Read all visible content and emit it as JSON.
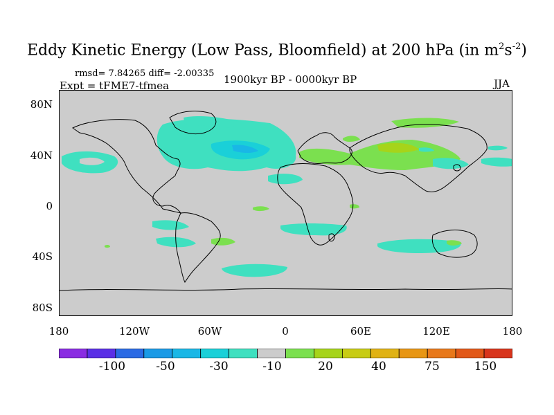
{
  "title": {
    "main": "Eddy Kinetic Energy (Low Pass, Bloomfield) at 200 hPa (in m",
    "sup1": "2",
    "mid": "s",
    "sup2": "-2",
    "end": ")"
  },
  "stats": {
    "rmsd_line": "rmsd= 7.84265 diff= -2.00335"
  },
  "experiment": "Expt = tFME7-tfmea",
  "period": "1900kyr BP - 0000kyr BP",
  "season": "JJA",
  "axes": {
    "lat_labels": [
      "80N",
      "40N",
      "0",
      "40S",
      "80S"
    ],
    "lon_labels": [
      "180",
      "120W",
      "60W",
      "0",
      "60E",
      "120E",
      "180"
    ]
  },
  "colorbar": {
    "colors": [
      "#8a2be2",
      "#5a2ee6",
      "#2a6ae4",
      "#1a9ae6",
      "#19b7e6",
      "#1ad0d8",
      "#3fe0c0",
      "#cccccc",
      "#7be04f",
      "#a6d41a",
      "#c8cc14",
      "#e0b214",
      "#e89614",
      "#e8781a",
      "#e25818",
      "#d8341c"
    ],
    "labels": [
      "-100",
      "-50",
      "-30",
      "-10",
      "20",
      "40",
      "75",
      "150"
    ]
  },
  "map_style": {
    "background": "#cccccc",
    "coast_color": "#000000"
  }
}
